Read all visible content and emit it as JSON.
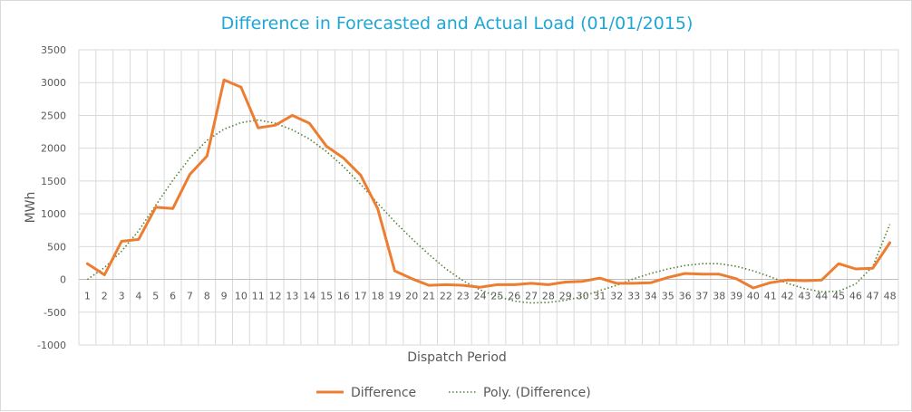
{
  "chart_data": {
    "type": "line",
    "title": "Difference in Forecasted and Actual Load (01/01/2015)",
    "xlabel": "Dispatch Period",
    "ylabel": "MWh",
    "ylim": [
      -1000,
      3500
    ],
    "ytick_step": 500,
    "yticks": [
      "-1000",
      "-500",
      "0",
      "500",
      "1000",
      "1500",
      "2000",
      "2500",
      "3000",
      "3500"
    ],
    "categories": [
      "1",
      "2",
      "3",
      "4",
      "5",
      "6",
      "7",
      "8",
      "9",
      "10",
      "11",
      "12",
      "13",
      "14",
      "15",
      "16",
      "17",
      "18",
      "19",
      "20",
      "21",
      "22",
      "23",
      "24",
      "25",
      "26",
      "27",
      "28",
      "29",
      "30",
      "31",
      "32",
      "33",
      "34",
      "35",
      "36",
      "37",
      "38",
      "39",
      "40",
      "41",
      "42",
      "43",
      "44",
      "45",
      "46",
      "47",
      "48"
    ],
    "grid": true,
    "legend_position": "bottom",
    "series": [
      {
        "name": "Difference",
        "color": "#ed7d31",
        "style": "solid",
        "values": [
          240,
          70,
          580,
          610,
          1100,
          1080,
          1600,
          1880,
          3040,
          2930,
          2310,
          2350,
          2500,
          2380,
          2030,
          1850,
          1590,
          1080,
          130,
          10,
          -90,
          -80,
          -90,
          -120,
          -80,
          -80,
          -60,
          -80,
          -40,
          -30,
          20,
          -60,
          -60,
          -50,
          30,
          90,
          80,
          80,
          10,
          -130,
          -50,
          -10,
          -20,
          -10,
          240,
          160,
          170,
          560
        ]
      },
      {
        "name": "Poly. (Difference)",
        "color": "#548235",
        "style": "dotted",
        "values": [
          0,
          180,
          430,
          740,
          1130,
          1510,
          1850,
          2120,
          2290,
          2390,
          2430,
          2380,
          2280,
          2140,
          1950,
          1720,
          1450,
          1160,
          880,
          620,
          380,
          160,
          -20,
          -160,
          -260,
          -330,
          -360,
          -350,
          -320,
          -260,
          -170,
          -90,
          10,
          90,
          160,
          210,
          240,
          240,
          200,
          130,
          40,
          -60,
          -140,
          -190,
          -180,
          -70,
          200,
          840
        ]
      }
    ]
  }
}
